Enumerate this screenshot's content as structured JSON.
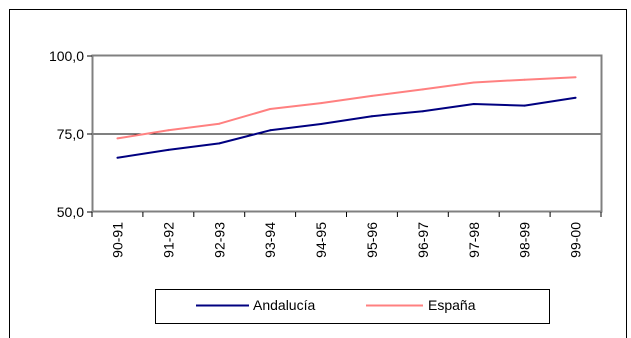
{
  "chart_data": {
    "type": "line",
    "categories": [
      "90-91",
      "91-92",
      "92-93",
      "93-94",
      "94-95",
      "95-96",
      "96-97",
      "97-98",
      "98-99",
      "99-00"
    ],
    "series": [
      {
        "name": "Andalucía",
        "color": "#000080",
        "values": [
          67.4,
          69.9,
          72.0,
          76.2,
          78.2,
          80.7,
          82.3,
          84.6,
          84.1,
          86.6
        ]
      },
      {
        "name": "España",
        "color": "#ff8080",
        "values": [
          73.6,
          76.2,
          78.3,
          83.0,
          84.9,
          87.2,
          89.3,
          91.5,
          92.4,
          93.2
        ]
      }
    ],
    "yticks": [
      "50,0",
      "75,0",
      "100,0"
    ],
    "ylim": [
      50,
      100
    ],
    "grid": true,
    "legend_position": "bottom",
    "plot_border_color": "#808080",
    "grid_color": "#000000"
  }
}
